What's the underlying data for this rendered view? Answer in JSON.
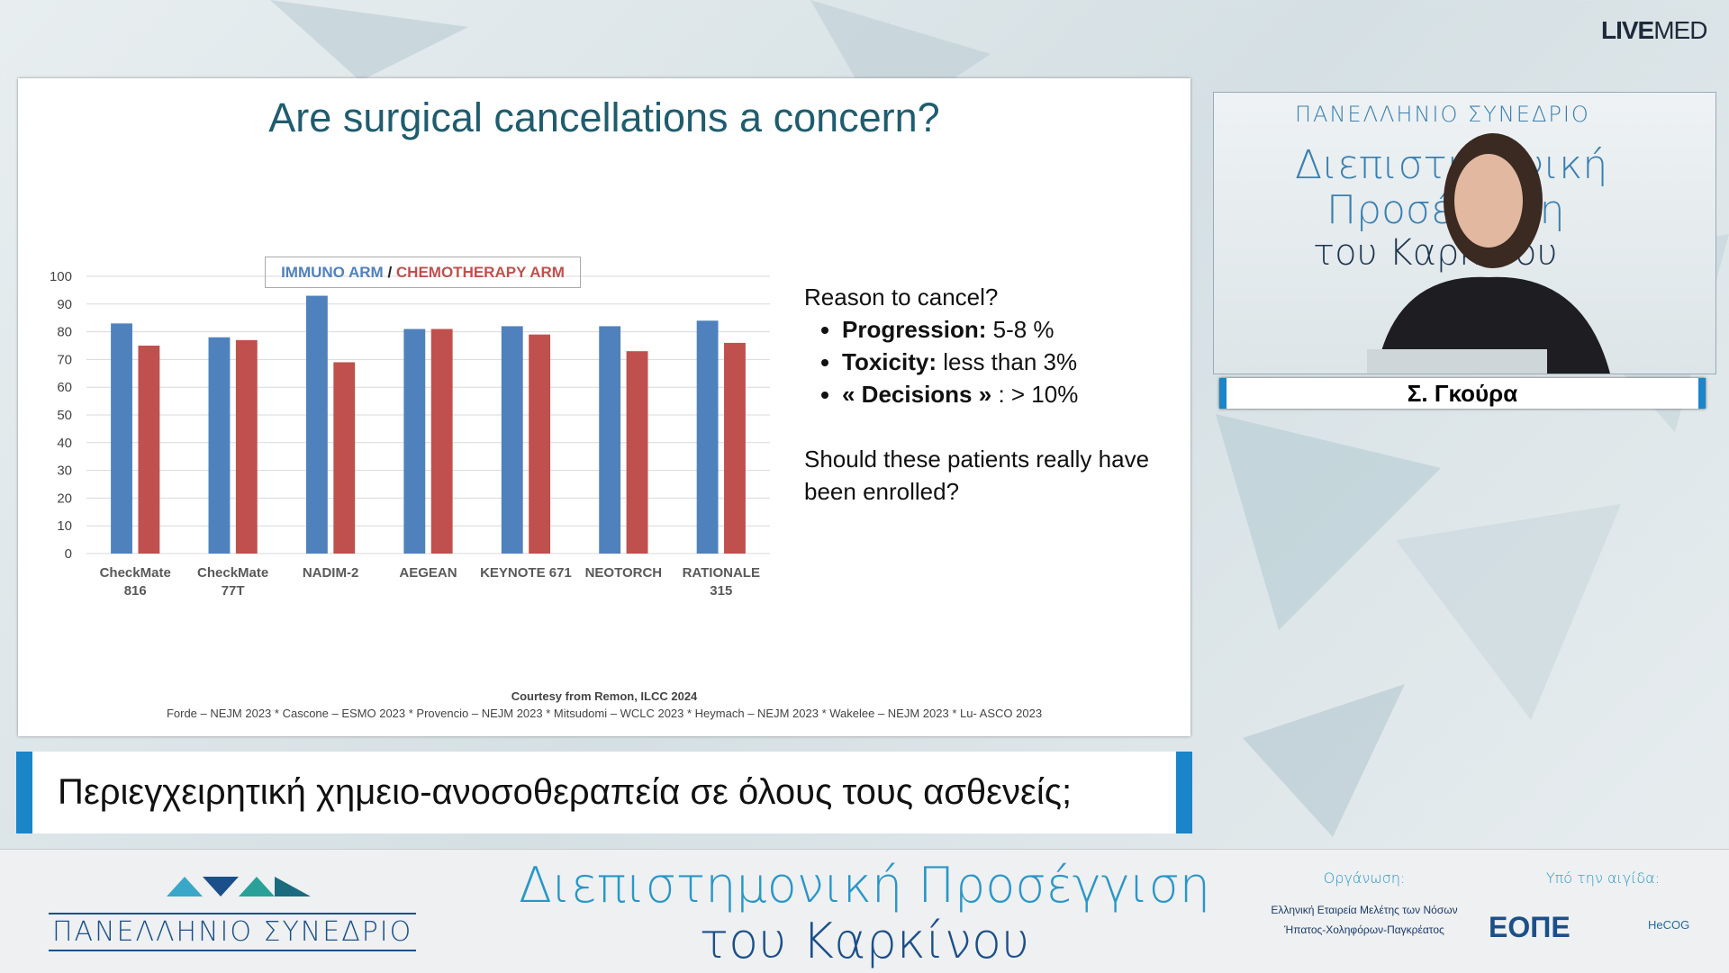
{
  "brand": {
    "bold": "LIVE",
    "light": "MED"
  },
  "slide": {
    "title": "Are surgical cancellations a concern?",
    "question": "Reason to cancel?",
    "reasons": [
      {
        "label": "Progression:",
        "text": "5-8 %"
      },
      {
        "label": "Toxicity:",
        "text": "less than 3%"
      },
      {
        "label": "« Decisions »",
        "text": ": > 10%"
      }
    ],
    "closing": "Should these patients really have been enrolled?",
    "courtesy": "Courtesy from Remon, ILCC 2024",
    "references": "Forde – NEJM 2023 * Cascone – ESMO 2023 * Provencio – NEJM 2023  * Mitsudomi – WCLC 2023 * Heymach – NEJM 2023 * Wakelee – NEJM 2023 * Lu- ASCO 2023"
  },
  "chart_data": {
    "type": "bar",
    "categories": [
      "CheckMate\n816",
      "CheckMate\n77T",
      "NADIM-2",
      "AEGEAN",
      "KEYNOTE 671",
      "NEOTORCH",
      "RATIONALE\n315"
    ],
    "series": [
      {
        "name": "IMMUNO ARM",
        "color": "#4f81bd",
        "values": [
          83,
          78,
          93,
          81,
          82,
          82,
          84
        ]
      },
      {
        "name": "CHEMOTHERAPY ARM",
        "color": "#c0504d",
        "values": [
          75,
          77,
          69,
          81,
          79,
          73,
          76
        ]
      }
    ],
    "legend_separator": "/",
    "ylim": [
      0,
      100
    ],
    "yticks": [
      0,
      10,
      20,
      30,
      40,
      50,
      60,
      70,
      80,
      90,
      100
    ],
    "grid": true
  },
  "video": {
    "backdrop": [
      "ΠΑΝΕΛΛΗΝΙΟ ΣΥΝΕΔΡΙΟ",
      "Διεπιστημονική",
      "Προσέγγιση",
      "του Καρκίνου"
    ],
    "speaker": "Σ. Γκούρα"
  },
  "caption": "Περιεγχειρητική χημειο-ανοσοθεραπεία σε όλους τους ασθενείς;",
  "footer": {
    "logo": "ΠΑΝΕΛΛΗΝΙΟ ΣΥΝΕΔΡΙΟ",
    "title_line1": "Διεπιστημονική Προσέγγιση",
    "title_line2": "του Καρκίνου",
    "organizer_label": "Οργάνωση:",
    "organizer_line1": "Ελληνική Εταιρεία Μελέτης των Νόσων",
    "organizer_line2": "Ήπατος-Χοληφόρων-Παγκρέατος",
    "auspices_label": "Υπό την αιγίδα:",
    "auspices_1": "ΕΟΠΕ",
    "auspices_2": "HeCOG"
  }
}
